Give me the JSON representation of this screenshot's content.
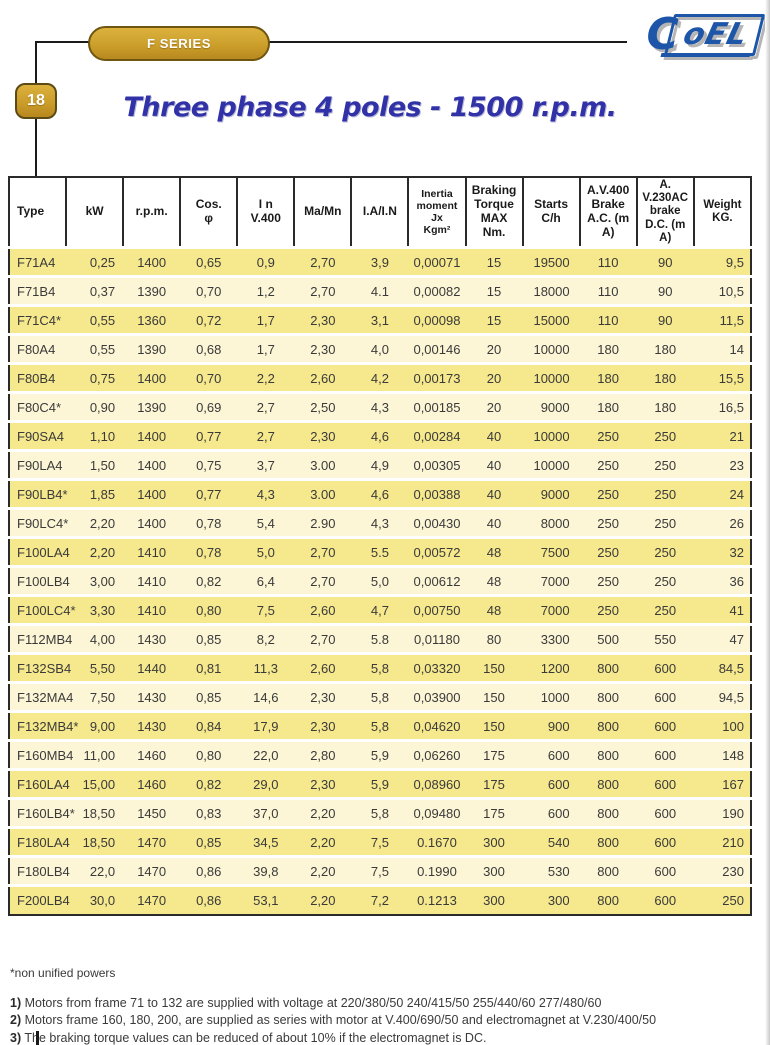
{
  "page": {
    "series_badge": "F SERIES",
    "page_number": "18",
    "title": "Three phase 4 poles - 1500 r.p.m.",
    "logo": {
      "text_c": "C",
      "text_rest": "oEL"
    }
  },
  "colors": {
    "gold": "#CEA02F",
    "logo_blue": "#1d55a8",
    "title_blue": "#3232A8",
    "row_dark": "#F6E88C",
    "row_light": "#FCF6D6"
  },
  "table": {
    "columns": [
      {
        "id": "type",
        "lines": [
          "Type"
        ]
      },
      {
        "id": "kw",
        "lines": [
          "kW"
        ]
      },
      {
        "id": "rpm",
        "lines": [
          "r.p.m."
        ]
      },
      {
        "id": "cos-phi",
        "lines": [
          "Cos.",
          "φ"
        ]
      },
      {
        "id": "in-v400",
        "lines": [
          "I n",
          "V.400"
        ]
      },
      {
        "id": "ma-mn",
        "lines": [
          "Ma/Mn"
        ]
      },
      {
        "id": "ia-in",
        "lines": [
          "I.A/I.N"
        ]
      },
      {
        "id": "inertia",
        "lines": [
          "Inertia",
          "moment",
          "Jx",
          "Kgm²"
        ]
      },
      {
        "id": "braking",
        "lines": [
          "Braking",
          "Torque MAX",
          "Nm."
        ]
      },
      {
        "id": "starts",
        "lines": [
          "Starts",
          "C/h"
        ]
      },
      {
        "id": "av400",
        "lines": [
          "A.V.400",
          "Brake",
          "A.C. (m A)"
        ]
      },
      {
        "id": "av230",
        "lines": [
          "A. V.230AC",
          "brake",
          "D.C. (m A)"
        ]
      },
      {
        "id": "weight",
        "lines": [
          "Weight",
          "KG."
        ]
      }
    ],
    "rows": [
      [
        "F71A4",
        "0,25",
        "1400",
        "0,65",
        "0,9",
        "2,70",
        "3,9",
        "0,00071",
        "15",
        "19500",
        "110",
        "90",
        "9,5"
      ],
      [
        "F71B4",
        "0,37",
        "1390",
        "0,70",
        "1,2",
        "2,70",
        "4.1",
        "0,00082",
        "15",
        "18000",
        "110",
        "90",
        "10,5"
      ],
      [
        "F71C4*",
        "0,55",
        "1360",
        "0,72",
        "1,7",
        "2,30",
        "3,1",
        "0,00098",
        "15",
        "15000",
        "110",
        "90",
        "11,5"
      ],
      [
        "F80A4",
        "0,55",
        "1390",
        "0,68",
        "1,7",
        "2,30",
        "4,0",
        "0,00146",
        "20",
        "10000",
        "180",
        "180",
        "14"
      ],
      [
        "F80B4",
        "0,75",
        "1400",
        "0,70",
        "2,2",
        "2,60",
        "4,2",
        "0,00173",
        "20",
        "10000",
        "180",
        "180",
        "15,5"
      ],
      [
        "F80C4*",
        "0,90",
        "1390",
        "0,69",
        "2,7",
        "2,50",
        "4,3",
        "0,00185",
        "20",
        "9000",
        "180",
        "180",
        "16,5"
      ],
      [
        "F90SA4",
        "1,10",
        "1400",
        "0,77",
        "2,7",
        "2,30",
        "4,6",
        "0,00284",
        "40",
        "10000",
        "250",
        "250",
        "21"
      ],
      [
        "F90LA4",
        "1,50",
        "1400",
        "0,75",
        "3,7",
        "3.00",
        "4,9",
        "0,00305",
        "40",
        "10000",
        "250",
        "250",
        "23"
      ],
      [
        "F90LB4*",
        "1,85",
        "1400",
        "0,77",
        "4,3",
        "3.00",
        "4,6",
        "0,00388",
        "40",
        "9000",
        "250",
        "250",
        "24"
      ],
      [
        "F90LC4*",
        "2,20",
        "1400",
        "0,78",
        "5,4",
        "2.90",
        "4,3",
        "0,00430",
        "40",
        "8000",
        "250",
        "250",
        "26"
      ],
      [
        "F100LA4",
        "2,20",
        "1410",
        "0,78",
        "5,0",
        "2,70",
        "5.5",
        "0,00572",
        "48",
        "7500",
        "250",
        "250",
        "32"
      ],
      [
        "F100LB4",
        "3,00",
        "1410",
        "0,82",
        "6,4",
        "2,70",
        "5,0",
        "0,00612",
        "48",
        "7000",
        "250",
        "250",
        "36"
      ],
      [
        "F100LC4*",
        "3,30",
        "1410",
        "0,80",
        "7,5",
        "2,60",
        "4,7",
        "0,00750",
        "48",
        "7000",
        "250",
        "250",
        "41"
      ],
      [
        "F112MB4",
        "4,00",
        "1430",
        "0,85",
        "8,2",
        "2,70",
        "5.8",
        "0,01180",
        "80",
        "3300",
        "500",
        "550",
        "47"
      ],
      [
        "F132SB4",
        "5,50",
        "1440",
        "0,81",
        "11,3",
        "2,60",
        "5,8",
        "0,03320",
        "150",
        "1200",
        "800",
        "600",
        "84,5"
      ],
      [
        "F132MA4",
        "7,50",
        "1430",
        "0,85",
        "14,6",
        "2,30",
        "5,8",
        "0,03900",
        "150",
        "1000",
        "800",
        "600",
        "94,5"
      ],
      [
        "F132MB4*",
        "9,00",
        "1430",
        "0,84",
        "17,9",
        "2,30",
        "5,8",
        "0,04620",
        "150",
        "900",
        "800",
        "600",
        "100"
      ],
      [
        "F160MB4",
        "11,00",
        "1460",
        "0,80",
        "22,0",
        "2,80",
        "5,9",
        "0,06260",
        "175",
        "600",
        "800",
        "600",
        "148"
      ],
      [
        "F160LA4",
        "15,00",
        "1460",
        "0,82",
        "29,0",
        "2,30",
        "5,9",
        "0,08960",
        "175",
        "600",
        "800",
        "600",
        "167"
      ],
      [
        "F160LB4*",
        "18,50",
        "1450",
        "0,83",
        "37,0",
        "2,20",
        "5,8",
        "0,09480",
        "175",
        "600",
        "800",
        "600",
        "190"
      ],
      [
        "F180LA4",
        "18,50",
        "1470",
        "0,85",
        "34,5",
        "2,20",
        "7,5",
        "0.1670",
        "300",
        "540",
        "800",
        "600",
        "210"
      ],
      [
        "F180LB4",
        "22,0",
        "1470",
        "0,86",
        "39,8",
        "2,20",
        "7,5",
        "0.1990",
        "300",
        "530",
        "800",
        "600",
        "230"
      ],
      [
        "F200LB4",
        "30,0",
        "1470",
        "0,86",
        "53,1",
        "2,20",
        "7,2",
        "0.1213",
        "300",
        "300",
        "800",
        "600",
        "250"
      ]
    ]
  },
  "footnote": "*non unified powers",
  "notes": [
    {
      "num": "1)",
      "text": "Motors from frame 71 to 132 are supplied with voltage at 220/380/50 240/415/50 255/440/60 277/480/60"
    },
    {
      "num": "2)",
      "text": "Motors frame 160, 180, 200, are supplied as series with motor at V.400/690/50 and electromagnet at V.230/400/50"
    },
    {
      "num": "3)",
      "text": "The braking torque values can be reduced of about 10% if the electromagnet is DC."
    }
  ]
}
